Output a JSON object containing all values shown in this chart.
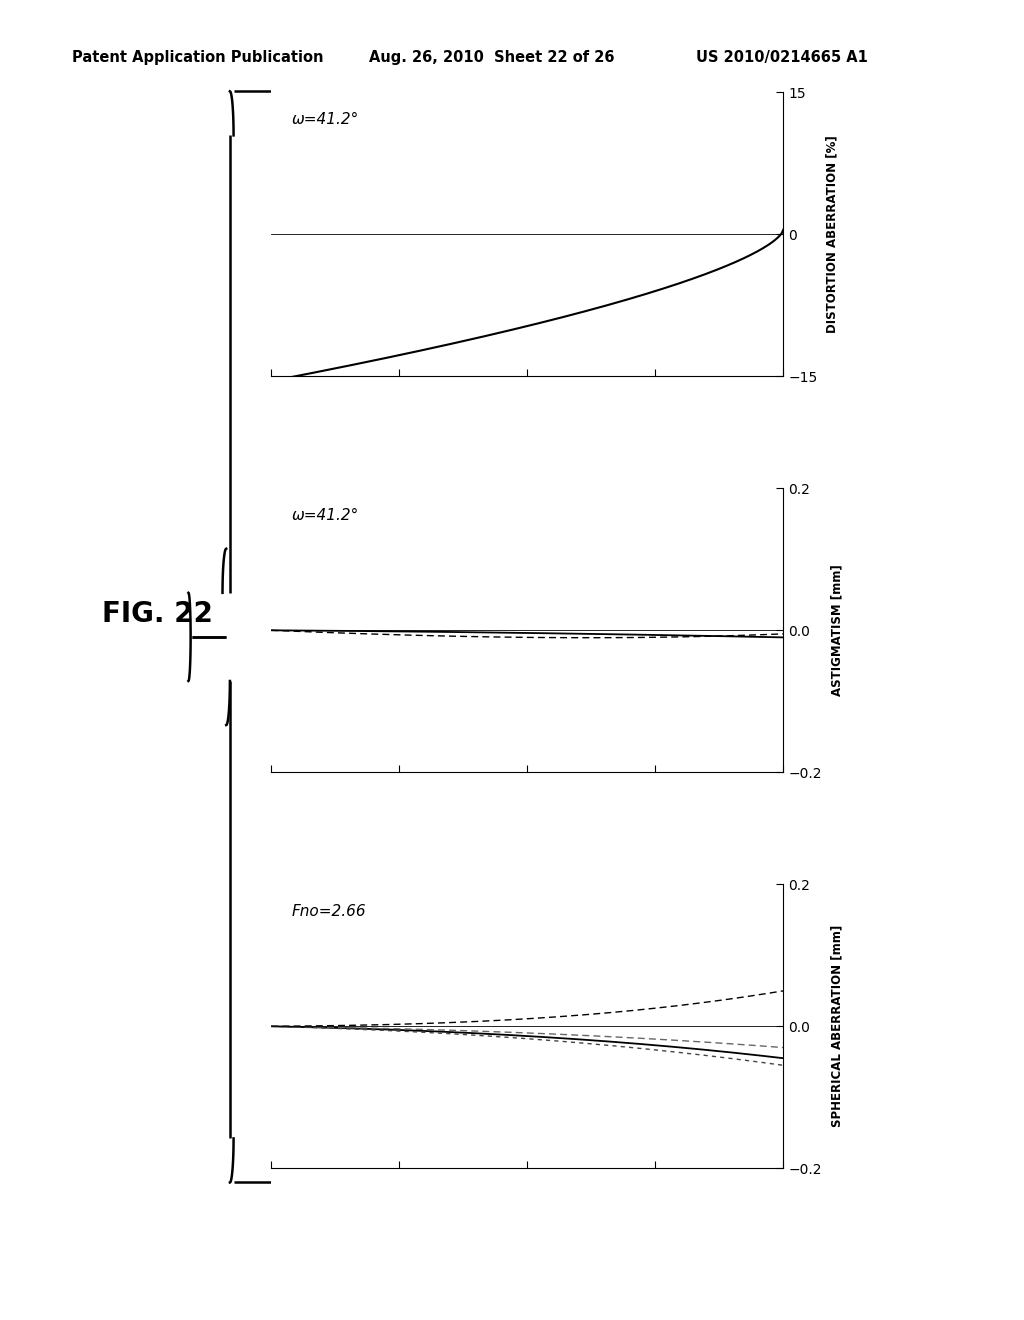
{
  "fig_label": "FIG. 22",
  "header_left": "Patent Application Publication",
  "header_mid": "Aug. 26, 2010  Sheet 22 of 26",
  "header_right": "US 2010/0214665 A1",
  "plot1_title": "Fno=2.66",
  "plot2_title": "ω=41.2°",
  "plot3_title": "ω=41.2°",
  "plot1_ylabel": "SPHERICAL ABERRATION [mm]",
  "plot2_ylabel": "ASTIGMATISM [mm]",
  "plot3_ylabel": "DISTORTION ABERRATION [%]",
  "plot1_ylim": [
    -0.2,
    0.2
  ],
  "plot2_ylim": [
    -0.2,
    0.2
  ],
  "plot3_ylim": [
    -15,
    15
  ],
  "plot1_yticks": [
    -0.2,
    0,
    0.2
  ],
  "plot2_yticks": [
    -0.2,
    0,
    0.2
  ],
  "plot3_yticks": [
    -15,
    0,
    15
  ],
  "bg_color": "#ffffff"
}
